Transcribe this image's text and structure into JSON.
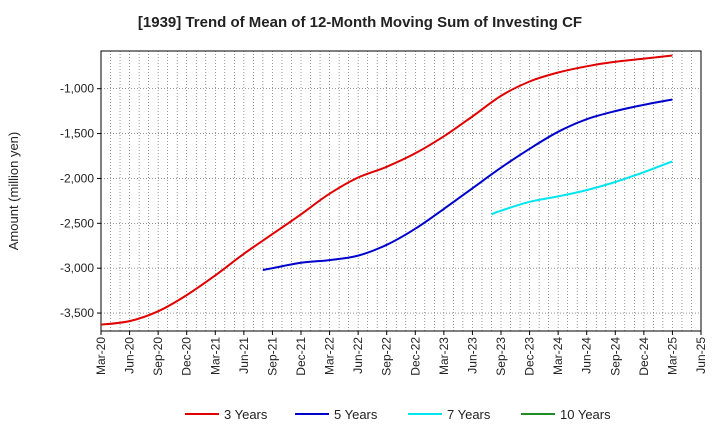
{
  "chart_data": {
    "type": "line",
    "title": "[1939]  Trend of Mean of 12-Month Moving Sum of Investing CF",
    "ylabel": "Amount (million yen)",
    "xlabel": "",
    "ylim": [
      -3700,
      -580
    ],
    "yticks": [
      -1000,
      -1500,
      -2000,
      -2500,
      -3000,
      -3500
    ],
    "ytick_labels": [
      "-1,000",
      "-1,500",
      "-2,000",
      "-2,500",
      "-3,000",
      "-3,500"
    ],
    "xticks": [
      "Mar-20",
      "Jun-20",
      "Sep-20",
      "Dec-20",
      "Mar-21",
      "Jun-21",
      "Sep-21",
      "Dec-21",
      "Mar-22",
      "Jun-22",
      "Sep-22",
      "Dec-22",
      "Mar-23",
      "Jun-23",
      "Sep-23",
      "Dec-23",
      "Mar-24",
      "Jun-24",
      "Sep-24",
      "Dec-24",
      "Mar-25",
      "Jun-25"
    ],
    "grid": true,
    "legend_position": "bottom",
    "series": [
      {
        "name": "3 Years",
        "color": "#e00000",
        "x": [
          "Mar-20",
          "Jun-20",
          "Sep-20",
          "Dec-20",
          "Mar-21",
          "Jun-21",
          "Sep-21",
          "Dec-21",
          "Mar-22",
          "Jun-22",
          "Sep-22",
          "Dec-22",
          "Mar-23",
          "Jun-23",
          "Sep-23",
          "Dec-23",
          "Mar-24",
          "Jun-24",
          "Sep-24",
          "Dec-24",
          "Mar-25"
        ],
        "values": [
          -3630,
          -3590,
          -3480,
          -3300,
          -3080,
          -2840,
          -2620,
          -2400,
          -2170,
          -1990,
          -1870,
          -1720,
          -1530,
          -1310,
          -1080,
          -920,
          -820,
          -750,
          -700,
          -665,
          -630
        ]
      },
      {
        "name": "5 Years",
        "color": "#0000cc",
        "x": [
          "Aug-21",
          "Sep-21",
          "Dec-21",
          "Mar-22",
          "Jun-22",
          "Sep-22",
          "Dec-22",
          "Mar-23",
          "Jun-23",
          "Sep-23",
          "Dec-23",
          "Mar-24",
          "Jun-24",
          "Sep-24",
          "Dec-24",
          "Mar-25"
        ],
        "values": [
          -3020,
          -3000,
          -2940,
          -2910,
          -2860,
          -2740,
          -2560,
          -2340,
          -2110,
          -1880,
          -1670,
          -1480,
          -1340,
          -1250,
          -1180,
          -1120
        ]
      },
      {
        "name": "7 Years",
        "color": "#00e5ee",
        "x": [
          "Aug-23",
          "Sep-23",
          "Dec-23",
          "Mar-24",
          "Jun-24",
          "Sep-24",
          "Dec-24",
          "Mar-25"
        ],
        "values": [
          -2400,
          -2360,
          -2260,
          -2200,
          -2130,
          -2040,
          -1930,
          -1810
        ]
      },
      {
        "name": "10 Years",
        "color": "#228b22",
        "x": [],
        "values": []
      }
    ]
  }
}
